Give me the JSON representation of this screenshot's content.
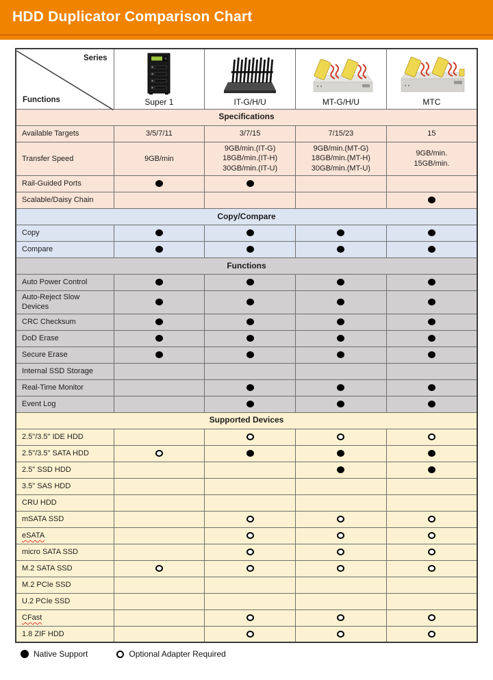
{
  "chart_data": {
    "type": "table",
    "title": "HDD Duplicator Comparison Chart",
    "corner": {
      "top_right": "Series",
      "bottom_left": "Functions"
    },
    "columns": [
      "Super 1",
      "IT-G/H/U",
      "MT-G/H/U",
      "MTC"
    ],
    "legend": [
      {
        "symbol": "●",
        "label": "Native Support"
      },
      {
        "symbol": "○",
        "label": "Optional Adapter Required"
      }
    ],
    "colors": {
      "banner": "#F08300",
      "banner_stripe": "#D26A00",
      "specifications": "#FAE4D7",
      "copy_compare": "#DCE4F1",
      "functions": "#D1CFCF",
      "supported_devices": "#FCF2D1"
    },
    "sections": [
      {
        "title": "Specifications",
        "color": "#FAE4D7",
        "rows": [
          {
            "label": "Available Targets",
            "cells": [
              "3/5/7/11",
              "3/7/15",
              "7/15/23",
              "15"
            ]
          },
          {
            "label": "Transfer Speed",
            "cells": [
              "9GB/min",
              [
                "9GB/min.(IT-G)",
                "18GB/min.(IT-H)",
                "30GB/min.(IT-U)"
              ],
              [
                "9GB/min.(MT-G)",
                "18GB/min.(MT-H)",
                "30GB/min.(MT-U)"
              ],
              [
                "9GB/min.",
                "15GB/min."
              ]
            ]
          },
          {
            "label": "Rail-Guided Ports",
            "cells": [
              "●",
              "●",
              "",
              ""
            ]
          },
          {
            "label": "Scalable/Daisy Chain",
            "cells": [
              "",
              "",
              "",
              "●"
            ]
          }
        ]
      },
      {
        "title": "Copy/Compare",
        "color": "#DCE4F1",
        "rows": [
          {
            "label": "Copy",
            "cells": [
              "●",
              "●",
              "●",
              "●"
            ]
          },
          {
            "label": "Compare",
            "cells": [
              "●",
              "●",
              "●",
              "●"
            ]
          }
        ]
      },
      {
        "title": "Functions",
        "color": "#D1CFCF",
        "rows": [
          {
            "label": "Auto Power Control",
            "cells": [
              "●",
              "●",
              "●",
              "●"
            ]
          },
          {
            "label": "Auto-Reject Slow Devices",
            "cells": [
              "●",
              "●",
              "●",
              "●"
            ]
          },
          {
            "label": "CRC Checksum",
            "cells": [
              "●",
              "●",
              "●",
              "●"
            ]
          },
          {
            "label": "DoD Erase",
            "cells": [
              "●",
              "●",
              "●",
              "●"
            ]
          },
          {
            "label": "Secure Erase",
            "cells": [
              "●",
              "●",
              "●",
              "●"
            ]
          },
          {
            "label": "Internal SSD Storage",
            "cells": [
              "",
              "",
              "",
              ""
            ]
          },
          {
            "label": "Real-Time Monitor",
            "cells": [
              "",
              "●",
              "●",
              "●"
            ]
          },
          {
            "label": "Event Log",
            "cells": [
              "",
              "●",
              "●",
              "●"
            ]
          }
        ]
      },
      {
        "title": "Supported Devices",
        "color": "#FCF2D1",
        "rows": [
          {
            "label": "2.5\"/3.5\" IDE HDD",
            "cells": [
              "",
              "○",
              "○",
              "○"
            ]
          },
          {
            "label": "2.5\"/3.5\" SATA HDD",
            "cells": [
              "○",
              "●",
              "●",
              "●"
            ]
          },
          {
            "label": "2.5\" SSD HDD",
            "cells": [
              "",
              "",
              "●",
              "●"
            ]
          },
          {
            "label": "3.5\" SAS HDD",
            "cells": [
              "",
              "",
              "",
              ""
            ]
          },
          {
            "label": "CRU HDD",
            "cells": [
              "",
              "",
              "",
              ""
            ]
          },
          {
            "label": "mSATA SSD",
            "cells": [
              "",
              "○",
              "○",
              "○"
            ]
          },
          {
            "label": "eSATA",
            "cells": [
              "",
              "○",
              "○",
              "○"
            ],
            "squiggle": true
          },
          {
            "label": "micro SATA SSD",
            "cells": [
              "",
              "○",
              "○",
              "○"
            ]
          },
          {
            "label": "M.2 SATA SSD",
            "cells": [
              "○",
              "○",
              "○",
              "○"
            ]
          },
          {
            "label": "M.2 PCIe SSD",
            "cells": [
              "",
              "",
              "",
              ""
            ]
          },
          {
            "label": "U.2 PCIe SSD",
            "cells": [
              "",
              "",
              "",
              ""
            ]
          },
          {
            "label": "CFast",
            "cells": [
              "",
              "○",
              "○",
              "○"
            ],
            "squiggle": true
          },
          {
            "label": "1.8 ZIF HDD",
            "cells": [
              "",
              "○",
              "○",
              "○"
            ]
          }
        ]
      }
    ]
  }
}
